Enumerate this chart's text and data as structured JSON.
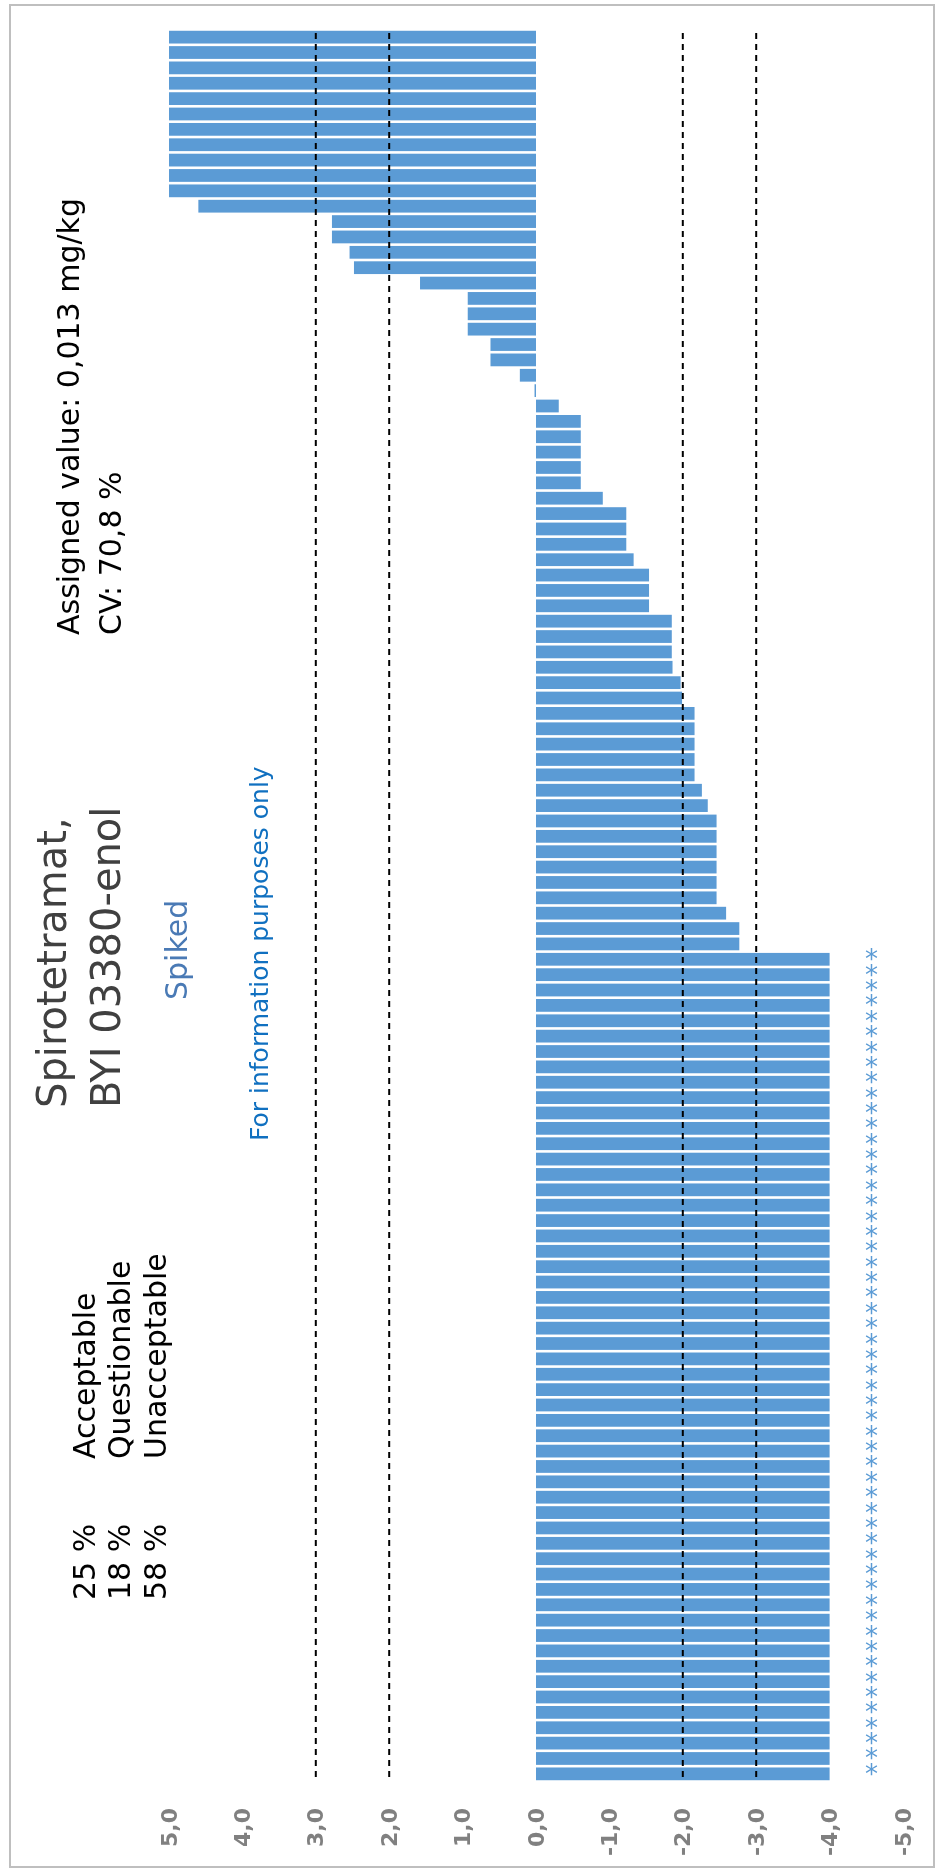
{
  "chart_data": {
    "type": "bar",
    "orientation": "horizontal",
    "title": "Spirotetramat,\nBYI 03380-enol",
    "subtitle": "Spiked",
    "annotations": [
      "Assigned value: 0,013 mg/kg",
      "CV: 70,8 %",
      "For information purposes only",
      "25 %",
      "Acceptable",
      "18 %",
      "Questionable",
      "58 %",
      "Unacceptable"
    ],
    "categories": [
      null,
      null,
      null,
      null,
      null,
      null,
      null,
      null,
      null,
      null,
      null,
      null,
      null,
      null,
      null,
      null,
      null,
      null,
      null,
      null,
      null,
      null,
      null,
      null,
      null,
      null,
      null,
      null,
      null,
      null,
      null,
      null,
      null,
      null,
      null,
      null,
      null,
      null,
      null,
      null,
      null,
      null,
      null,
      null,
      null,
      null,
      null,
      null,
      null,
      null,
      null,
      null,
      null,
      null,
      null,
      null,
      null,
      null,
      null,
      null,
      null,
      null,
      null,
      null,
      null,
      null,
      null,
      null,
      null,
      null,
      null,
      null,
      null,
      null,
      null,
      null,
      null,
      null,
      null,
      null,
      null,
      null,
      null,
      null,
      null,
      null,
      null,
      null,
      null,
      null,
      null,
      null,
      null,
      null,
      null,
      null,
      null,
      null,
      null,
      null,
      null,
      null,
      null,
      null,
      null,
      null,
      null,
      null,
      null,
      null,
      null,
      null,
      null,
      null
    ],
    "values": [
      5.0,
      5.0,
      5.0,
      5.0,
      5.0,
      5.0,
      5.0,
      5.0,
      5.0,
      5.0,
      5.0,
      4.6,
      2.78,
      2.78,
      2.54,
      2.48,
      1.58,
      0.93,
      0.93,
      0.93,
      0.62,
      0.62,
      0.22,
      0.02,
      -0.31,
      -0.61,
      -0.61,
      -0.61,
      -0.61,
      -0.61,
      -0.91,
      -1.23,
      -1.23,
      -1.23,
      -1.33,
      -1.54,
      -1.54,
      -1.54,
      -1.85,
      -1.85,
      -1.85,
      -1.86,
      -1.97,
      -1.99,
      -2.16,
      -2.16,
      -2.16,
      -2.16,
      -2.16,
      -2.26,
      -2.34,
      -2.46,
      -2.46,
      -2.46,
      -2.46,
      -2.46,
      -2.46,
      -2.59,
      -2.77,
      -2.77,
      -4.0,
      -4.0,
      -4.0,
      -4.0,
      -4.0,
      -4.0,
      -4.0,
      -4.0,
      -4.0,
      -4.0,
      -4.0,
      -4.0,
      -4.0,
      -4.0,
      -4.0,
      -4.0,
      -4.0,
      -4.0,
      -4.0,
      -4.0,
      -4.0,
      -4.0,
      -4.0,
      -4.0,
      -4.0,
      -4.0,
      -4.0,
      -4.0,
      -4.0,
      -4.0,
      -4.0,
      -4.0,
      -4.0,
      -4.0,
      -4.0,
      -4.0,
      -4.0,
      -4.0,
      -4.0,
      -4.0,
      -4.0,
      -4.0,
      -4.0,
      -4.0,
      -4.0,
      -4.0,
      -4.0,
      -4.0,
      -4.0,
      -4.0,
      -4.0,
      -4.0,
      -4.0,
      -4.0
    ],
    "value_labels": [
      null,
      null,
      null,
      null,
      null,
      null,
      null,
      null,
      null,
      null,
      null,
      null,
      null,
      null,
      null,
      null,
      null,
      null,
      null,
      null,
      null,
      null,
      null,
      null,
      null,
      null,
      null,
      null,
      null,
      null,
      null,
      null,
      null,
      null,
      null,
      null,
      null,
      null,
      null,
      null,
      null,
      null,
      null,
      null,
      null,
      null,
      null,
      null,
      null,
      null,
      null,
      null,
      null,
      null,
      null,
      null,
      null,
      null,
      null,
      null,
      "*",
      "*",
      "*",
      "*",
      "*",
      "*",
      "*",
      "*",
      "*",
      "*",
      "*",
      "*",
      "*",
      "*",
      "*",
      "*",
      "*",
      "*",
      "*",
      "*",
      "*",
      "*",
      "*",
      "*",
      "*",
      "*",
      "*",
      "*",
      "*",
      "*",
      "*",
      "*",
      "*",
      "*",
      "*",
      "*",
      "*",
      "*",
      "*",
      "*",
      "*",
      "*",
      "*",
      "*",
      "*",
      "*",
      "*",
      "*",
      "*",
      "*",
      "*",
      "*",
      "*",
      "*"
    ],
    "color": "#5b9bd5",
    "xlim": [
      5,
      -5
    ],
    "xticks": [
      {
        "value": 5,
        "label": "5,0"
      },
      {
        "value": 4,
        "label": "4,0"
      },
      {
        "value": 3,
        "label": "3,0"
      },
      {
        "value": 2,
        "label": "2,0"
      },
      {
        "value": 1,
        "label": "1,0"
      },
      {
        "value": 0,
        "label": "0,0"
      },
      {
        "value": -1,
        "label": "-1,0"
      },
      {
        "value": -2,
        "label": "-2,0"
      },
      {
        "value": -3,
        "label": "-3,0"
      },
      {
        "value": -4,
        "label": "-4,0"
      },
      {
        "value": -5,
        "label": "-5,0"
      }
    ],
    "ref_lines": [
      {
        "axis": "x",
        "value": 3,
        "color": "#000000",
        "line_style": "dashed"
      },
      {
        "axis": "x",
        "value": 2,
        "color": "#000000",
        "line_style": "dashed"
      },
      {
        "axis": "x",
        "value": -2,
        "color": "#000000",
        "line_style": "dashed"
      },
      {
        "axis": "x",
        "value": -3,
        "color": "#000000",
        "line_style": "dashed"
      }
    ]
  }
}
